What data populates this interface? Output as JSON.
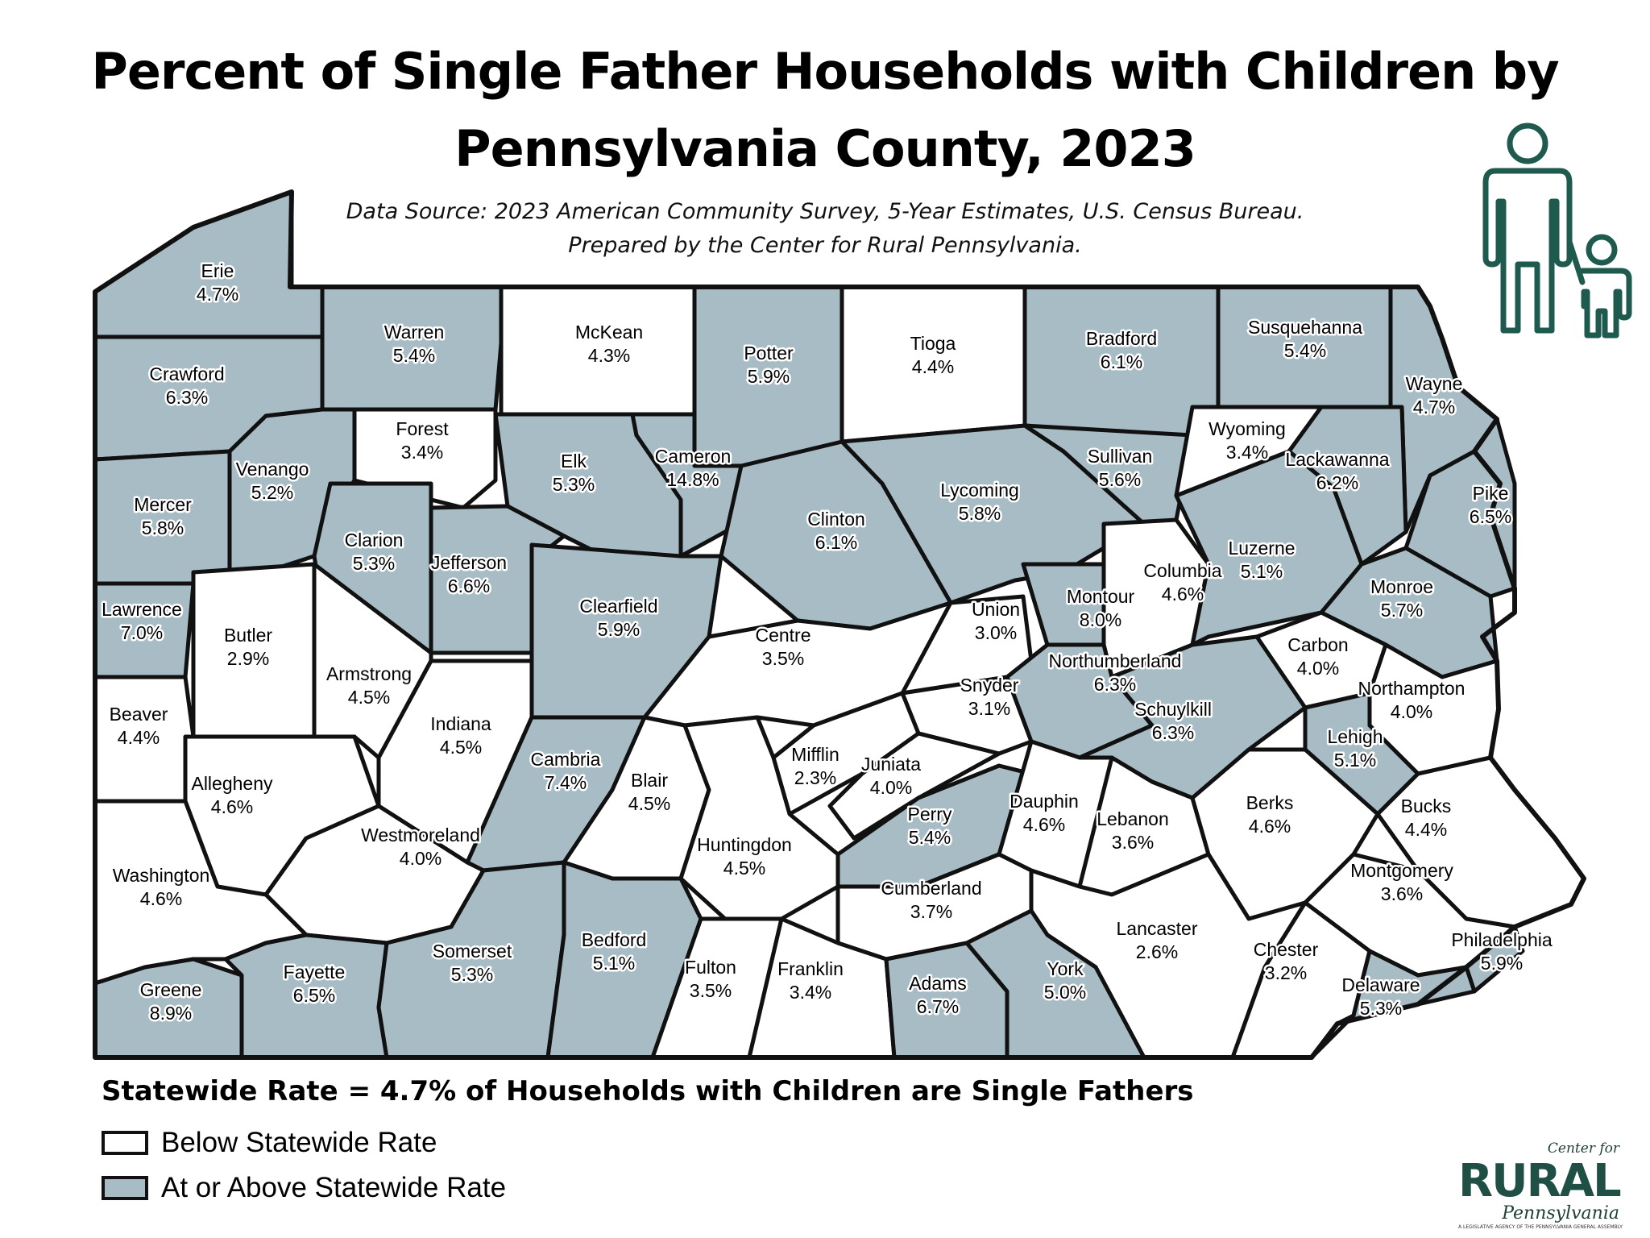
{
  "title_line1": "Percent of Single Father Households with Children by",
  "title_line2": "Pennsylvania County, 2023",
  "source_line1": "Data Source: 2023 American Community Survey, 5-Year Estimates, U.S. Census Bureau.",
  "source_line2": "Prepared by the Center for Rural Pennsylvania.",
  "statewide_text": "Statewide Rate = 4.7% of Households with Children are Single Fathers",
  "legend": {
    "below_label": "Below Statewide Rate",
    "above_label": "At or Above Statewide Rate",
    "below_color": "#ffffff",
    "above_color": "#a7bcc4"
  },
  "icon": "father-and-child-icon",
  "logo": {
    "center_for": "Center for",
    "rural": "RURAL",
    "pennsylvania": "Pennsylvania",
    "agency": "A LEGISLATIVE AGENCY OF THE PENNSYLVANIA GENERAL ASSEMBLY"
  },
  "map_data": {
    "statewide_rate": 4.7,
    "counties": [
      {
        "name": "Erie",
        "value": "4.7%",
        "category": "above"
      },
      {
        "name": "Warren",
        "value": "5.4%",
        "category": "above"
      },
      {
        "name": "McKean",
        "value": "4.3%",
        "category": "below"
      },
      {
        "name": "Potter",
        "value": "5.9%",
        "category": "above"
      },
      {
        "name": "Tioga",
        "value": "4.4%",
        "category": "below"
      },
      {
        "name": "Bradford",
        "value": "6.1%",
        "category": "above"
      },
      {
        "name": "Susquehanna",
        "value": "5.4%",
        "category": "above"
      },
      {
        "name": "Wayne",
        "value": "4.7%",
        "category": "above"
      },
      {
        "name": "Crawford",
        "value": "6.3%",
        "category": "above"
      },
      {
        "name": "Forest",
        "value": "3.4%",
        "category": "below"
      },
      {
        "name": "Elk",
        "value": "5.3%",
        "category": "above"
      },
      {
        "name": "Cameron",
        "value": "14.8%",
        "category": "above"
      },
      {
        "name": "Lycoming",
        "value": "5.8%",
        "category": "above"
      },
      {
        "name": "Sullivan",
        "value": "5.6%",
        "category": "above"
      },
      {
        "name": "Wyoming",
        "value": "3.4%",
        "category": "below"
      },
      {
        "name": "Lackawanna",
        "value": "6.2%",
        "category": "above"
      },
      {
        "name": "Pike",
        "value": "6.5%",
        "category": "above"
      },
      {
        "name": "Mercer",
        "value": "5.8%",
        "category": "above"
      },
      {
        "name": "Venango",
        "value": "5.2%",
        "category": "above"
      },
      {
        "name": "Clarion",
        "value": "5.3%",
        "category": "above"
      },
      {
        "name": "Jefferson",
        "value": "6.6%",
        "category": "above"
      },
      {
        "name": "Clinton",
        "value": "6.1%",
        "category": "above"
      },
      {
        "name": "Clearfield",
        "value": "5.9%",
        "category": "above"
      },
      {
        "name": "Centre",
        "value": "3.5%",
        "category": "below"
      },
      {
        "name": "Union",
        "value": "3.0%",
        "category": "below"
      },
      {
        "name": "Montour",
        "value": "8.0%",
        "category": "above"
      },
      {
        "name": "Columbia",
        "value": "4.6%",
        "category": "below"
      },
      {
        "name": "Luzerne",
        "value": "5.1%",
        "category": "above"
      },
      {
        "name": "Monroe",
        "value": "5.7%",
        "category": "above"
      },
      {
        "name": "Carbon",
        "value": "4.0%",
        "category": "below"
      },
      {
        "name": "Lawrence",
        "value": "7.0%",
        "category": "above"
      },
      {
        "name": "Butler",
        "value": "2.9%",
        "category": "below"
      },
      {
        "name": "Armstrong",
        "value": "4.5%",
        "category": "below"
      },
      {
        "name": "Beaver",
        "value": "4.4%",
        "category": "below"
      },
      {
        "name": "Indiana",
        "value": "4.5%",
        "category": "below"
      },
      {
        "name": "Northumberland",
        "value": "6.3%",
        "category": "above"
      },
      {
        "name": "Snyder",
        "value": "3.1%",
        "category": "below"
      },
      {
        "name": "Schuylkill",
        "value": "6.3%",
        "category": "above"
      },
      {
        "name": "Northampton",
        "value": "4.0%",
        "category": "below"
      },
      {
        "name": "Lehigh",
        "value": "5.1%",
        "category": "above"
      },
      {
        "name": "Allegheny",
        "value": "4.6%",
        "category": "below"
      },
      {
        "name": "Cambria",
        "value": "7.4%",
        "category": "above"
      },
      {
        "name": "Blair",
        "value": "4.5%",
        "category": "below"
      },
      {
        "name": "Mifflin",
        "value": "2.3%",
        "category": "below"
      },
      {
        "name": "Juniata",
        "value": "4.0%",
        "category": "below"
      },
      {
        "name": "Perry",
        "value": "5.4%",
        "category": "above"
      },
      {
        "name": "Dauphin",
        "value": "4.6%",
        "category": "below"
      },
      {
        "name": "Lebanon",
        "value": "3.6%",
        "category": "below"
      },
      {
        "name": "Berks",
        "value": "4.6%",
        "category": "below"
      },
      {
        "name": "Bucks",
        "value": "4.4%",
        "category": "below"
      },
      {
        "name": "Westmoreland",
        "value": "4.0%",
        "category": "below"
      },
      {
        "name": "Washington",
        "value": "4.6%",
        "category": "below"
      },
      {
        "name": "Huntingdon",
        "value": "4.5%",
        "category": "below"
      },
      {
        "name": "Cumberland",
        "value": "3.7%",
        "category": "below"
      },
      {
        "name": "Montgomery",
        "value": "3.6%",
        "category": "below"
      },
      {
        "name": "Lancaster",
        "value": "2.6%",
        "category": "below"
      },
      {
        "name": "Chester",
        "value": "3.2%",
        "category": "below"
      },
      {
        "name": "Philadelphia",
        "value": "5.9%",
        "category": "above"
      },
      {
        "name": "Delaware",
        "value": "5.3%",
        "category": "above"
      },
      {
        "name": "Greene",
        "value": "8.9%",
        "category": "above"
      },
      {
        "name": "Fayette",
        "value": "6.5%",
        "category": "above"
      },
      {
        "name": "Somerset",
        "value": "5.3%",
        "category": "above"
      },
      {
        "name": "Bedford",
        "value": "5.1%",
        "category": "above"
      },
      {
        "name": "Fulton",
        "value": "3.5%",
        "category": "below"
      },
      {
        "name": "Franklin",
        "value": "3.4%",
        "category": "below"
      },
      {
        "name": "Adams",
        "value": "6.7%",
        "category": "above"
      },
      {
        "name": "York",
        "value": "5.0%",
        "category": "above"
      }
    ]
  }
}
